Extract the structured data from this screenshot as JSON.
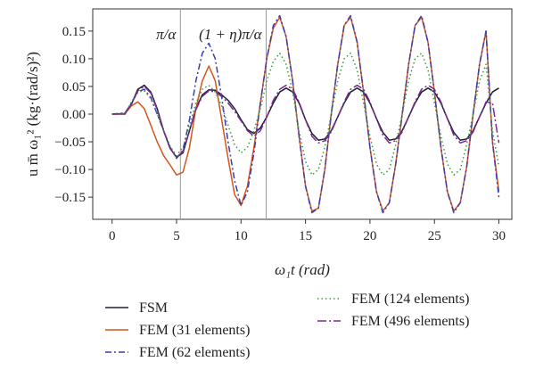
{
  "chart_data": {
    "type": "line",
    "xlabel": "ω₁t (rad)",
    "ylabel": "u m̄ ω₁² (kg·(rad/s)²)",
    "xlim": [
      -1.5,
      31.0
    ],
    "ylim": [
      -0.19,
      0.19
    ],
    "xticks": [
      "0",
      "5",
      "10",
      "15",
      "20",
      "25",
      "30"
    ],
    "yticks": [
      "−0.15",
      "−0.10",
      "−0.05",
      "0.00",
      "0.05",
      "0.10",
      "0.15"
    ],
    "vlines": [
      {
        "x": 5.3,
        "label": "π/α"
      },
      {
        "x": 11.95,
        "label": "(1 + η)π/α"
      }
    ],
    "legend_position": "bottom",
    "series": [
      {
        "name": "FSM",
        "color": "#1f1f3a",
        "dash": "",
        "x": [
          0,
          1,
          1.5,
          2,
          2.5,
          3,
          3.5,
          4,
          4.5,
          5,
          5.5,
          6,
          6.5,
          7,
          7.5,
          8,
          8.5,
          9,
          9.5,
          10,
          10.5,
          11,
          11.5,
          12,
          12.5,
          13,
          13.5,
          14,
          14.5,
          15,
          15.5,
          16,
          16.5,
          17,
          17.5,
          18,
          18.5,
          19,
          19.5,
          20,
          20.5,
          21,
          21.5,
          22,
          22.5,
          23,
          23.5,
          24,
          24.5,
          25,
          25.5,
          26,
          26.5,
          27,
          27.5,
          28,
          28.5,
          29,
          29.5,
          30
        ],
        "y": [
          0,
          0,
          0.018,
          0.045,
          0.052,
          0.04,
          0.01,
          -0.03,
          -0.062,
          -0.078,
          -0.07,
          -0.03,
          0.01,
          0.035,
          0.044,
          0.043,
          0.035,
          0.025,
          0.01,
          -0.01,
          -0.028,
          -0.035,
          -0.025,
          -0.005,
          0.02,
          0.04,
          0.047,
          0.04,
          0.02,
          -0.01,
          -0.035,
          -0.047,
          -0.045,
          -0.03,
          -0.005,
          0.02,
          0.04,
          0.047,
          0.04,
          0.02,
          -0.008,
          -0.033,
          -0.047,
          -0.045,
          -0.03,
          -0.005,
          0.02,
          0.04,
          0.047,
          0.04,
          0.02,
          -0.008,
          -0.033,
          -0.047,
          -0.045,
          -0.03,
          -0.005,
          0.02,
          0.04,
          0.047
        ]
      },
      {
        "name": "FEM (31 elements)",
        "color": "#d4561b",
        "dash": "",
        "x": [
          0,
          1,
          1.5,
          2,
          2.5,
          3,
          3.5,
          4,
          4.5,
          5,
          5.5,
          6,
          6.5,
          7,
          7.5,
          8,
          8.5,
          9,
          9.5,
          10,
          10.5,
          11,
          11.5,
          12,
          12.5,
          13,
          13.5,
          14,
          14.5,
          15,
          15.5,
          16,
          16.5,
          17,
          17.5,
          18,
          18.5,
          19,
          19.5,
          20,
          20.5,
          21,
          21.5,
          22,
          22.5,
          23,
          23.5,
          24,
          24.5,
          25,
          25.5,
          26,
          26.5,
          27,
          27.5,
          28,
          28.5,
          29,
          29.5,
          30
        ],
        "y": [
          0,
          0.001,
          0.015,
          0.022,
          0.01,
          -0.02,
          -0.05,
          -0.075,
          -0.092,
          -0.11,
          -0.105,
          -0.06,
          0.01,
          0.06,
          0.087,
          0.06,
          -0.01,
          -0.08,
          -0.145,
          -0.165,
          -0.13,
          -0.06,
          0.02,
          0.1,
          0.155,
          0.175,
          0.14,
          0.06,
          -0.04,
          -0.13,
          -0.175,
          -0.17,
          -0.1,
          0.0,
          0.09,
          0.16,
          0.175,
          0.13,
          0.04,
          -0.06,
          -0.14,
          -0.175,
          -0.16,
          -0.09,
          0.0,
          0.09,
          0.16,
          0.175,
          0.13,
          0.04,
          -0.06,
          -0.14,
          -0.175,
          -0.16,
          -0.095,
          0.0,
          0.09,
          0.15,
          -0.05,
          -0.14
        ]
      },
      {
        "name": "FEM (62 elements)",
        "color": "#3c3cb0",
        "dash": "7,3,2,3",
        "x": [
          0,
          1,
          1.5,
          2,
          2.5,
          3,
          3.5,
          4,
          4.5,
          5,
          5.5,
          6,
          6.5,
          7,
          7.5,
          8,
          8.5,
          9,
          9.5,
          10,
          10.5,
          11,
          11.5,
          12,
          12.5,
          13,
          13.5,
          14,
          14.5,
          15,
          15.5,
          16,
          16.5,
          17,
          17.5,
          18,
          18.5,
          19,
          19.5,
          20,
          20.5,
          21,
          21.5,
          22,
          22.5,
          23,
          23.5,
          24,
          24.5,
          25,
          25.5,
          26,
          26.5,
          27,
          27.5,
          28,
          28.5,
          29,
          29.5,
          30
        ],
        "y": [
          0,
          0.002,
          0.02,
          0.04,
          0.045,
          0.03,
          0.0,
          -0.03,
          -0.06,
          -0.08,
          -0.065,
          -0.01,
          0.06,
          0.11,
          0.128,
          0.1,
          0.03,
          -0.05,
          -0.12,
          -0.165,
          -0.14,
          -0.07,
          0.02,
          0.1,
          0.16,
          0.178,
          0.14,
          0.06,
          -0.04,
          -0.13,
          -0.178,
          -0.17,
          -0.1,
          0.0,
          0.09,
          0.16,
          0.178,
          0.13,
          0.04,
          -0.06,
          -0.14,
          -0.178,
          -0.16,
          -0.09,
          0.0,
          0.09,
          0.16,
          0.178,
          0.13,
          0.04,
          -0.06,
          -0.14,
          -0.178,
          -0.16,
          -0.095,
          0.0,
          0.09,
          0.15,
          -0.05,
          -0.15
        ]
      },
      {
        "name": "FEM (124 elements)",
        "color": "#3a9a3a",
        "dash": "1.5,3",
        "x": [
          0,
          1,
          1.5,
          2,
          2.5,
          3,
          3.5,
          4,
          4.5,
          5,
          5.5,
          6,
          6.5,
          7,
          7.5,
          8,
          8.5,
          9,
          9.5,
          10,
          10.5,
          11,
          11.5,
          12,
          12.5,
          13,
          13.5,
          14,
          14.5,
          15,
          15.5,
          16,
          16.5,
          17,
          17.5,
          18,
          18.5,
          19,
          19.5,
          20,
          20.5,
          21,
          21.5,
          22,
          22.5,
          23,
          23.5,
          24,
          24.5,
          25,
          25.5,
          26,
          26.5,
          27,
          27.5,
          28,
          28.5,
          29,
          29.5,
          30
        ],
        "y": [
          0,
          0.002,
          0.022,
          0.04,
          0.042,
          0.028,
          0.0,
          -0.03,
          -0.058,
          -0.075,
          -0.06,
          -0.02,
          0.02,
          0.045,
          0.052,
          0.04,
          0.015,
          -0.02,
          -0.055,
          -0.07,
          -0.06,
          -0.03,
          0.01,
          0.06,
          0.095,
          0.11,
          0.09,
          0.04,
          -0.03,
          -0.085,
          -0.11,
          -0.1,
          -0.06,
          0.0,
          0.06,
          0.1,
          0.11,
          0.08,
          0.02,
          -0.04,
          -0.09,
          -0.11,
          -0.1,
          -0.055,
          0.0,
          0.06,
          0.1,
          0.11,
          0.08,
          0.02,
          -0.04,
          -0.09,
          -0.11,
          -0.1,
          -0.055,
          0.0,
          0.06,
          0.09,
          -0.03,
          -0.095
        ]
      },
      {
        "name": "FEM (496 elements)",
        "color": "#7a2a8a",
        "dash": "10,3,2,3",
        "x": [
          0,
          1,
          1.5,
          2,
          2.5,
          3,
          3.5,
          4,
          4.5,
          5,
          5.5,
          6,
          6.5,
          7,
          7.5,
          8,
          8.5,
          9,
          9.5,
          10,
          10.5,
          11,
          11.5,
          12,
          12.5,
          13,
          13.5,
          14,
          14.5,
          15,
          15.5,
          16,
          16.5,
          17,
          17.5,
          18,
          18.5,
          19,
          19.5,
          20,
          20.5,
          21,
          21.5,
          22,
          22.5,
          23,
          23.5,
          24,
          24.5,
          25,
          25.5,
          26,
          26.5,
          27,
          27.5,
          28,
          28.5,
          29,
          29.5,
          30
        ],
        "y": [
          0,
          0.001,
          0.018,
          0.042,
          0.05,
          0.038,
          0.008,
          -0.03,
          -0.062,
          -0.078,
          -0.068,
          -0.03,
          0.008,
          0.032,
          0.042,
          0.04,
          0.032,
          0.02,
          0.005,
          -0.012,
          -0.03,
          -0.04,
          -0.03,
          -0.005,
          0.025,
          0.045,
          0.052,
          0.045,
          0.022,
          -0.01,
          -0.04,
          -0.052,
          -0.048,
          -0.032,
          -0.005,
          0.022,
          0.045,
          0.052,
          0.045,
          0.022,
          -0.008,
          -0.038,
          -0.052,
          -0.048,
          -0.032,
          -0.005,
          0.022,
          0.045,
          0.052,
          0.045,
          0.022,
          -0.008,
          -0.038,
          -0.052,
          -0.048,
          -0.032,
          -0.005,
          0.022,
          0.02,
          -0.052
        ]
      }
    ]
  }
}
